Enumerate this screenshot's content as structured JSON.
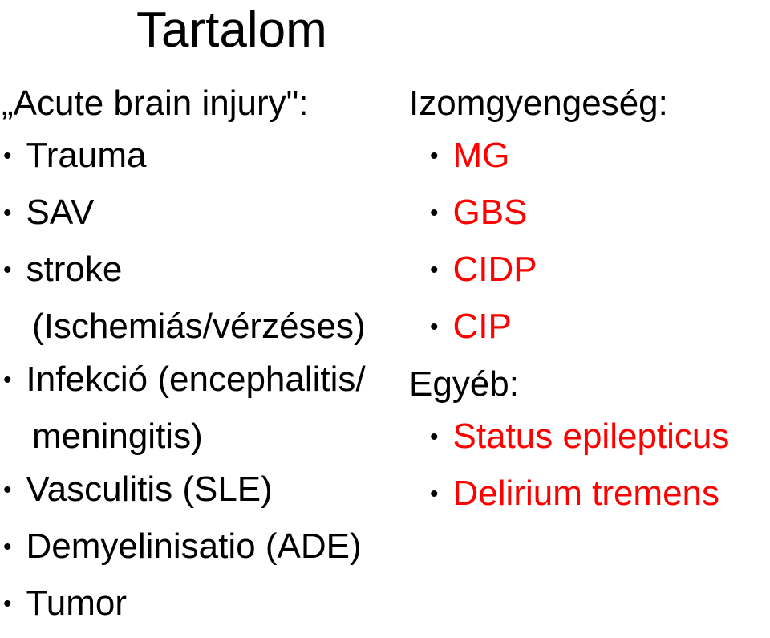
{
  "title": "Tartalom",
  "leftColumn": {
    "header": "„Acute brain injury\":",
    "items": [
      {
        "text": "Trauma",
        "red": false,
        "indent": false
      },
      {
        "text": "SAV",
        "red": false,
        "indent": false
      },
      {
        "text": "stroke",
        "red": false,
        "indent": false
      }
    ],
    "indentLine": "(Ischemiás/vérzéses)",
    "items2": [
      {
        "text": "Infekció (encephalitis/",
        "red": false,
        "indent": false
      }
    ],
    "indentLine2": "meningitis)",
    "items3": [
      {
        "text": "Vasculitis (SLE)",
        "red": false,
        "indent": false
      },
      {
        "text": "Demyelinisatio (ADE)",
        "red": false,
        "indent": false
      },
      {
        "text": "Tumor",
        "red": false,
        "indent": false
      }
    ]
  },
  "rightColumn": {
    "header1": "Izomgyengeség:",
    "redItems1": [
      "MG",
      "GBS",
      "CIDP",
      "CIP"
    ],
    "header2": "Egyéb:",
    "redItems2": [
      "Status epilepticus",
      "Delirium tremens"
    ]
  },
  "colors": {
    "text": "#000000",
    "highlight": "#ff0000",
    "background": "#ffffff"
  }
}
